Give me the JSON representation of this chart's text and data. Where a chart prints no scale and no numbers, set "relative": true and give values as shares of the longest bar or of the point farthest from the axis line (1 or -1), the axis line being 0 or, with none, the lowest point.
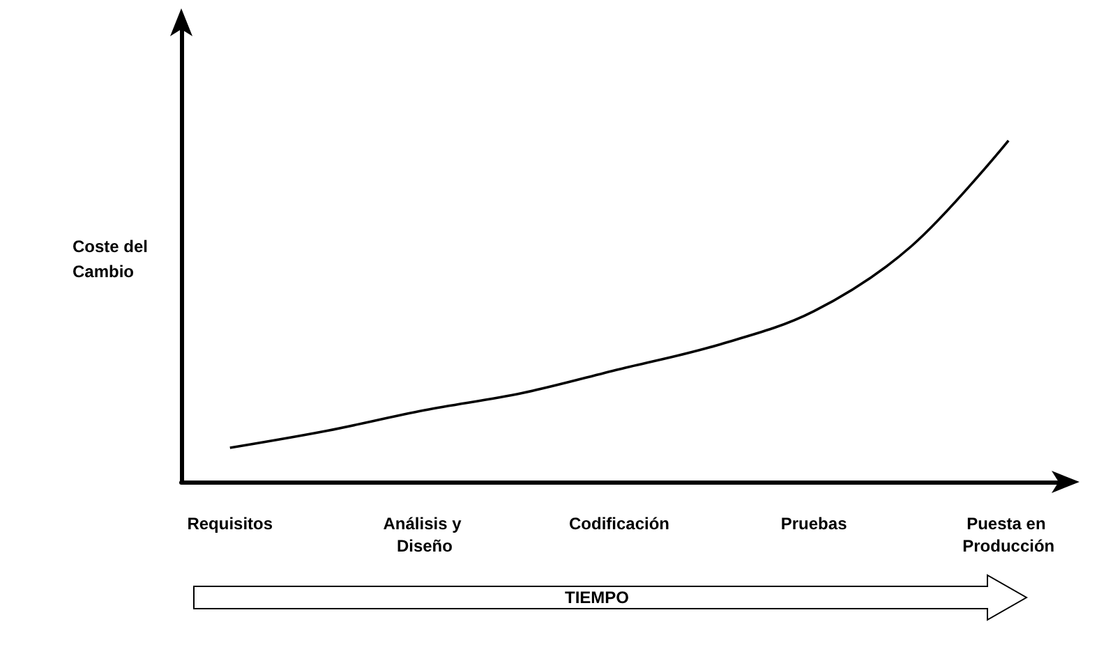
{
  "chart_data": {
    "type": "line",
    "relative": true,
    "xlabel": "TIEMPO",
    "ylabel": "Coste del Cambio",
    "categories": [
      "Requisitos",
      null,
      "Análisis y Diseño",
      null,
      "Codificación",
      null,
      "Pruebas",
      null,
      "Puesta en Producción"
    ],
    "series": [
      {
        "color": "#000000",
        "values": [
          0.1,
          0.15,
          0.21,
          0.26,
          0.33,
          0.4,
          0.5,
          0.69,
          1
        ]
      }
    ],
    "marker": "none",
    "grid": false
  }
}
